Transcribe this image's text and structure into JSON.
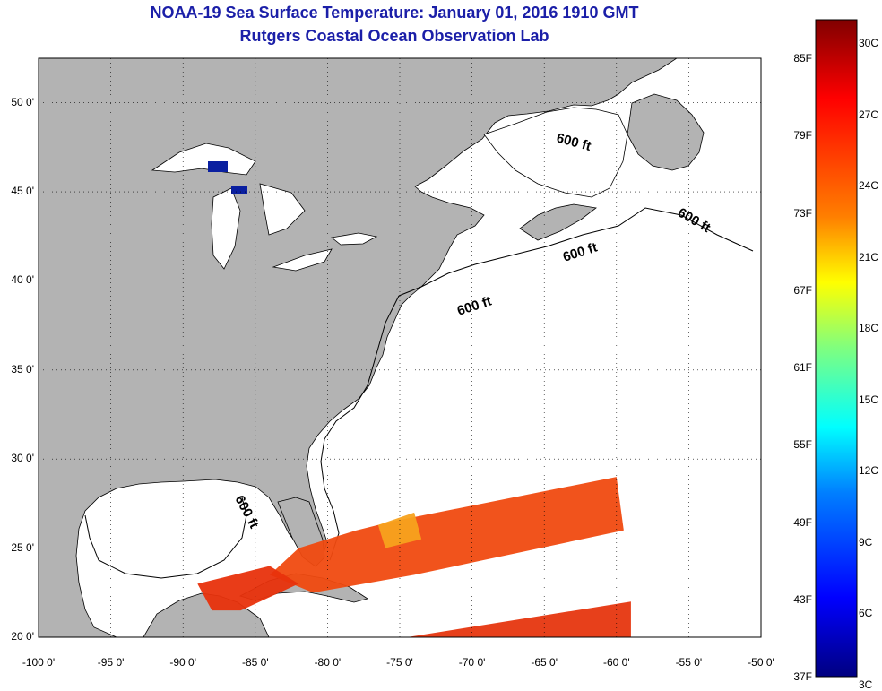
{
  "title": "NOAA-19 Sea Surface Temperature:  January 01, 2016 1910 GMT",
  "subtitle": "Rutgers Coastal Ocean Observation Lab",
  "map": {
    "lon_range": [
      -100,
      -50
    ],
    "lat_range": [
      20,
      52.5
    ],
    "lon_ticks": [
      "-100 0'",
      "-95 0'",
      "-90 0'",
      "-85 0'",
      "-80 0'",
      "-75 0'",
      "-70 0'",
      "-65 0'",
      "-60 0'",
      "-55 0'",
      "-50 0'"
    ],
    "lat_ticks": [
      "50 0'",
      "45 0'",
      "40 0'",
      "35 0'",
      "30 0'",
      "25 0'",
      "20 0'"
    ],
    "grid": "dotted",
    "land_color": "#b3b3b3",
    "water_color": "#ffffff",
    "contour_labels": [
      "600 ft",
      "600 ft",
      "600 ft",
      "600 ft",
      "600 ft"
    ]
  },
  "colorbar": {
    "fahrenheit_labels": [
      "85F",
      "79F",
      "73F",
      "67F",
      "61F",
      "55F",
      "49F",
      "43F",
      "37F"
    ],
    "celsius_labels": [
      "30C",
      "27C",
      "24C",
      "21C",
      "18C",
      "15C",
      "12C",
      "9C",
      "6C",
      "3C"
    ],
    "colors_top_to_bottom": [
      "#800000",
      "#ff0000",
      "#ff7f00",
      "#ffff00",
      "#7fff7f",
      "#00ffff",
      "#007fff",
      "#0000ff",
      "#000080"
    ]
  }
}
